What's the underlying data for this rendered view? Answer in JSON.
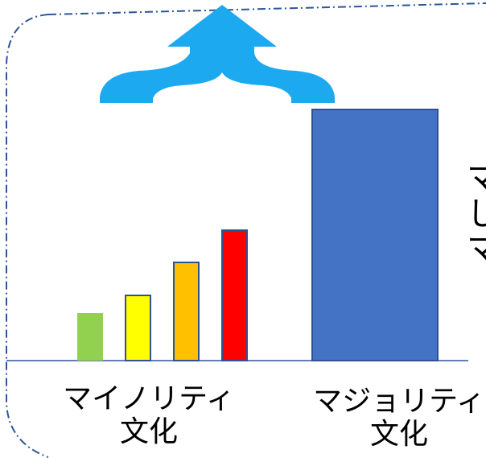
{
  "colors": {
    "arrow": "#1DA9F0",
    "baseline": "#2E5597",
    "frame": "#2F5597",
    "majority_bar": "#4472C4",
    "majority_bar_border": "#2F528F",
    "minority_bars": [
      "#92D050",
      "#FFFF00",
      "#FFC000",
      "#FF0000"
    ],
    "minority_bar_border": "#2F528F"
  },
  "icons": {
    "top": "upward-merge-arrow-icon"
  },
  "bars": {
    "minority_relative_heights": [
      0.19,
      0.26,
      0.39,
      0.52
    ],
    "majority_relative_height": 1.0
  },
  "labels": {
    "minority_line1": "マイノリティ",
    "minority_line2": "文化",
    "majority_line1": "マジョリティ",
    "majority_line2": "文化"
  },
  "side_text": {
    "line1": "マ",
    "line2": "し",
    "line3": "マ"
  }
}
